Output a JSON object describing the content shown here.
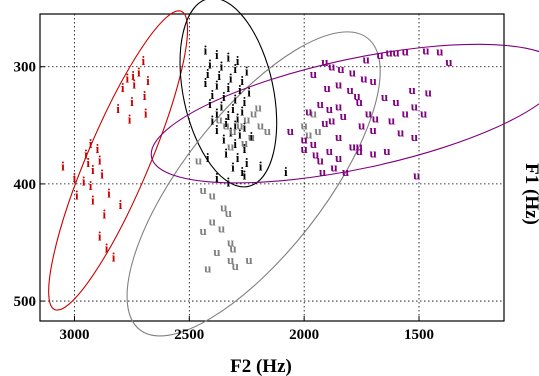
{
  "chart_data": {
    "type": "scatter",
    "xlabel": "F2 (Hz)",
    "ylabel": "F1 (Hz)",
    "x_reversed": true,
    "y_reversed": true,
    "xlim": [
      3150,
      1130
    ],
    "ylim": [
      255,
      517
    ],
    "x_ticks": [
      {
        "value": 3000,
        "label": "3000"
      },
      {
        "value": 2500,
        "label": "2500"
      },
      {
        "value": 2000,
        "label": "2000"
      },
      {
        "value": 1500,
        "label": "1500"
      }
    ],
    "y_ticks": [
      {
        "value": 300,
        "label": "300"
      },
      {
        "value": 400,
        "label": "400"
      },
      {
        "value": 500,
        "label": "500"
      }
    ],
    "grid": true,
    "grid_style": "dotted",
    "series": [
      {
        "label": "i",
        "color": "#cc0000",
        "points": [
          [
            2700,
            295
          ],
          [
            2720,
            305
          ],
          [
            2745,
            308
          ],
          [
            2770,
            310
          ],
          [
            2680,
            312
          ],
          [
            2740,
            315
          ],
          [
            2790,
            318
          ],
          [
            2695,
            325
          ],
          [
            2750,
            330
          ],
          [
            2810,
            336
          ],
          [
            2690,
            340
          ],
          [
            2760,
            345
          ],
          [
            2930,
            366
          ],
          [
            2900,
            370
          ],
          [
            2950,
            375
          ],
          [
            2890,
            380
          ],
          [
            2940,
            382
          ],
          [
            3050,
            385
          ],
          [
            2920,
            388
          ],
          [
            2880,
            392
          ],
          [
            3000,
            395
          ],
          [
            2960,
            398
          ],
          [
            2930,
            402
          ],
          [
            2850,
            408
          ],
          [
            2990,
            410
          ],
          [
            2920,
            414
          ],
          [
            2800,
            418
          ],
          [
            2870,
            426
          ],
          [
            2890,
            445
          ],
          [
            2860,
            455
          ],
          [
            2830,
            463
          ]
        ],
        "ellipse": {
          "cx": 2810,
          "cy": 380,
          "rx": 162,
          "ry": 31,
          "angle_deg": -67
        }
      },
      {
        "label": "i",
        "color": "#000000",
        "points": [
          [
            2430,
            286
          ],
          [
            2380,
            290
          ],
          [
            2330,
            292
          ],
          [
            2290,
            295
          ],
          [
            2410,
            298
          ],
          [
            2360,
            300
          ],
          [
            2300,
            302
          ],
          [
            2250,
            304
          ],
          [
            2420,
            306
          ],
          [
            2370,
            308
          ],
          [
            2320,
            310
          ],
          [
            2270,
            312
          ],
          [
            2430,
            314
          ],
          [
            2380,
            316
          ],
          [
            2330,
            318
          ],
          [
            2280,
            320
          ],
          [
            2240,
            322
          ],
          [
            2400,
            324
          ],
          [
            2350,
            326
          ],
          [
            2300,
            328
          ],
          [
            2260,
            330
          ],
          [
            2410,
            332
          ],
          [
            2360,
            334
          ],
          [
            2310,
            336
          ],
          [
            2270,
            338
          ],
          [
            2380,
            340
          ],
          [
            2330,
            342
          ],
          [
            2290,
            344
          ],
          [
            2400,
            346
          ],
          [
            2340,
            348
          ],
          [
            2300,
            350
          ],
          [
            2260,
            352
          ],
          [
            2380,
            354
          ],
          [
            2320,
            356
          ],
          [
            2280,
            358
          ],
          [
            2350,
            362
          ],
          [
            2300,
            366
          ],
          [
            2260,
            370
          ],
          [
            2340,
            374
          ],
          [
            2290,
            378
          ],
          [
            2250,
            382
          ],
          [
            2310,
            386
          ],
          [
            2270,
            390
          ],
          [
            2380,
            395
          ],
          [
            2330,
            399
          ],
          [
            2260,
            393
          ],
          [
            2080,
            390
          ],
          [
            2190,
            385
          ],
          [
            2230,
            360
          ],
          [
            2420,
            378
          ]
        ],
        "ellipse": {
          "cx": 2330,
          "cy": 322,
          "rx": 96,
          "ry": 45,
          "angle_deg": 78
        }
      },
      {
        "label": "u",
        "color": "#808080",
        "points": [
          [
            2370,
            345
          ],
          [
            2340,
            350
          ],
          [
            2310,
            355
          ],
          [
            2280,
            350
          ],
          [
            2250,
            345
          ],
          [
            2220,
            340
          ],
          [
            2200,
            335
          ],
          [
            2190,
            350
          ],
          [
            2160,
            355
          ],
          [
            2230,
            360
          ],
          [
            2260,
            365
          ],
          [
            2320,
            368
          ],
          [
            2000,
            350
          ],
          [
            1980,
            358
          ],
          [
            1960,
            340
          ],
          [
            1940,
            355
          ],
          [
            2460,
            380
          ],
          [
            2440,
            405
          ],
          [
            2400,
            410
          ],
          [
            2350,
            420
          ],
          [
            2330,
            425
          ],
          [
            2400,
            432
          ],
          [
            2440,
            440
          ],
          [
            2360,
            438
          ],
          [
            2320,
            450
          ],
          [
            2310,
            455
          ],
          [
            2380,
            458
          ],
          [
            2320,
            465
          ],
          [
            2300,
            470
          ],
          [
            2240,
            465
          ],
          [
            2420,
            472
          ]
        ],
        "ellipse": {
          "cx": 2220,
          "cy": 400,
          "rx": 185,
          "ry": 70,
          "angle_deg": -52
        }
      },
      {
        "label": "u",
        "color": "#800080",
        "points": [
          [
            1470,
            286
          ],
          [
            1560,
            287
          ],
          [
            1600,
            288
          ],
          [
            1630,
            288
          ],
          [
            1410,
            287
          ],
          [
            1670,
            290
          ],
          [
            1730,
            294
          ],
          [
            1370,
            296
          ],
          [
            1910,
            296
          ],
          [
            1880,
            300
          ],
          [
            1840,
            302
          ],
          [
            1790,
            305
          ],
          [
            1960,
            306
          ],
          [
            1740,
            310
          ],
          [
            1700,
            312
          ],
          [
            1850,
            315
          ],
          [
            1800,
            320
          ],
          [
            1770,
            325
          ],
          [
            1900,
            318
          ],
          [
            1530,
            320
          ],
          [
            1460,
            322
          ],
          [
            1650,
            326
          ],
          [
            1600,
            330
          ],
          [
            1520,
            334
          ],
          [
            1480,
            340
          ],
          [
            1560,
            340
          ],
          [
            1720,
            340
          ],
          [
            1690,
            344
          ],
          [
            1850,
            334
          ],
          [
            1760,
            330
          ],
          [
            1930,
            332
          ],
          [
            1890,
            336
          ],
          [
            1980,
            338
          ],
          [
            1830,
            342
          ],
          [
            1880,
            346
          ],
          [
            1620,
            346
          ],
          [
            1750,
            350
          ],
          [
            1700,
            354
          ],
          [
            1580,
            356
          ],
          [
            1520,
            360
          ],
          [
            1910,
            348
          ],
          [
            1850,
            360
          ],
          [
            2000,
            362
          ],
          [
            1790,
            368
          ],
          [
            1760,
            372
          ],
          [
            1700,
            374
          ],
          [
            1640,
            372
          ],
          [
            1960,
            366
          ],
          [
            1890,
            372
          ],
          [
            1850,
            378
          ],
          [
            1930,
            380
          ],
          [
            2060,
            355
          ],
          [
            2000,
            370
          ],
          [
            1760,
            368
          ],
          [
            1950,
            375
          ],
          [
            1870,
            386
          ],
          [
            1920,
            390
          ],
          [
            1820,
            390
          ],
          [
            1510,
            393
          ]
        ],
        "ellipse": {
          "cx": 1770,
          "cy": 340,
          "rx": 210,
          "ry": 55,
          "angle_deg": -12
        }
      }
    ]
  }
}
